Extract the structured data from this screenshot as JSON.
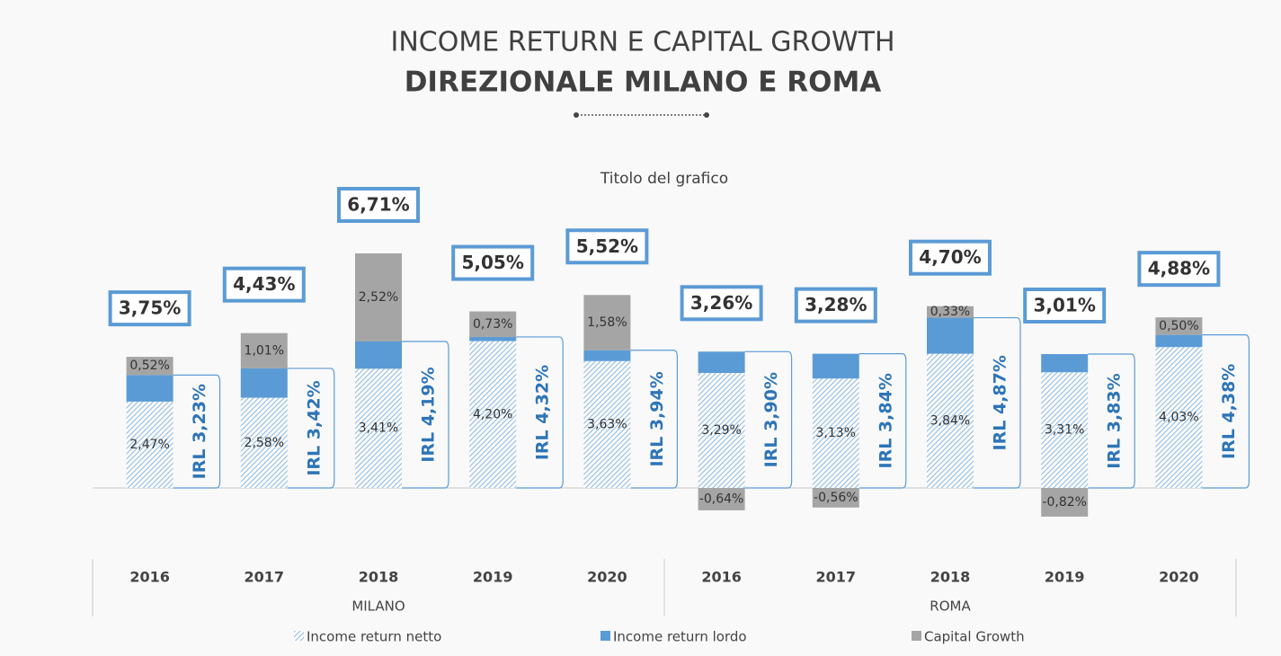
{
  "title": "INCOME RETURN E CAPITAL GROWTH",
  "subtitle": "DIREZIONALE MILANO E ROMA",
  "chart_data": {
    "type": "stacked_bar",
    "title": "Titolo del grafico",
    "categories": [
      "2016",
      "2017",
      "2018",
      "2019",
      "2020",
      "2016",
      "2017",
      "2018",
      "2019",
      "2020"
    ],
    "groups": [
      {
        "label": "MILANO",
        "count": 5
      },
      {
        "label": "ROMA",
        "count": 5
      }
    ],
    "series": [
      {
        "name": "Income return netto",
        "color": "#8fb9e0",
        "pattern": "hatch",
        "values": [
          2.47,
          2.58,
          3.41,
          4.2,
          3.63,
          3.29,
          3.13,
          3.84,
          3.31,
          4.03
        ],
        "value_labels": [
          "2,47%",
          "2,58%",
          "3,41%",
          "4,20%",
          "3,63%",
          "3,29%",
          "3,13%",
          "3,84%",
          "3,31%",
          "4,03%"
        ]
      },
      {
        "name": "Income return lordo",
        "color": "#5b9bd5",
        "values": [
          0.76,
          0.84,
          0.78,
          0.12,
          0.31,
          0.61,
          0.71,
          1.03,
          0.52,
          0.35
        ]
      },
      {
        "name": "Capital Growth",
        "color": "#a5a5a5",
        "values": [
          0.52,
          1.01,
          2.52,
          0.73,
          1.58,
          -0.64,
          -0.56,
          0.33,
          -0.82,
          0.5
        ],
        "value_labels": [
          "0,52%",
          "1,01%",
          "2,52%",
          "0,73%",
          "1,58%",
          "-0,64%",
          "-0,56%",
          "0,33%",
          "-0,82%",
          "0,50%"
        ]
      }
    ],
    "totals": {
      "values": [
        3.75,
        4.43,
        6.71,
        5.05,
        5.52,
        3.26,
        3.28,
        4.7,
        3.01,
        4.88
      ],
      "value_labels": [
        "3,75%",
        "4,43%",
        "6,71%",
        "5,05%",
        "5,52%",
        "3,26%",
        "3,28%",
        "4,70%",
        "3,01%",
        "4,88%"
      ]
    },
    "irl": {
      "values": [
        3.23,
        3.42,
        4.19,
        4.32,
        3.94,
        3.9,
        3.84,
        4.87,
        3.83,
        4.38
      ],
      "value_labels": [
        "IRL 3,23%",
        "IRL 3,42%",
        "IRL 4,19%",
        "IRL 4,32%",
        "IRL 3,94%",
        "IRL 3,90%",
        "IRL 3,84%",
        "IRL 4,87%",
        "IRL 3,83%",
        "IRL 4,38%"
      ]
    }
  }
}
